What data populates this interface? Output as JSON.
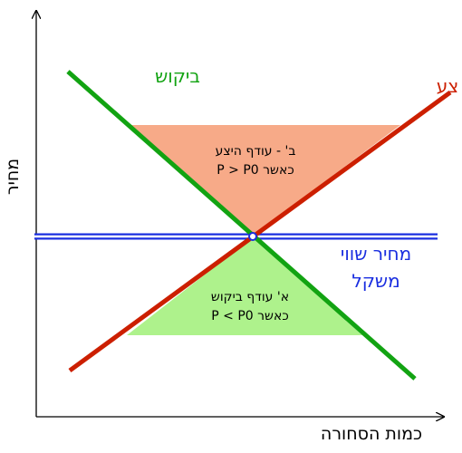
{
  "axes": {
    "x_title": "כמות הסחורה",
    "y_title": "מחיר"
  },
  "curves": {
    "demand": {
      "label": "ביקוש",
      "color": "#12a312"
    },
    "supply": {
      "label": "צע",
      "color": "#cc1f00"
    },
    "equilibrium": {
      "label_line1": "מחיר שווי",
      "label_line2": "משקל",
      "color": "#1a2ee0"
    }
  },
  "regions": {
    "surplus": {
      "line1": "ב' - עודף היצע",
      "line2": "P > P0 כאשר",
      "fill": "#f7aa88"
    },
    "shortage": {
      "line1": "א' עודף ביקוש",
      "line2": "P < P0 כאשר",
      "fill": "#aef28c"
    }
  }
}
